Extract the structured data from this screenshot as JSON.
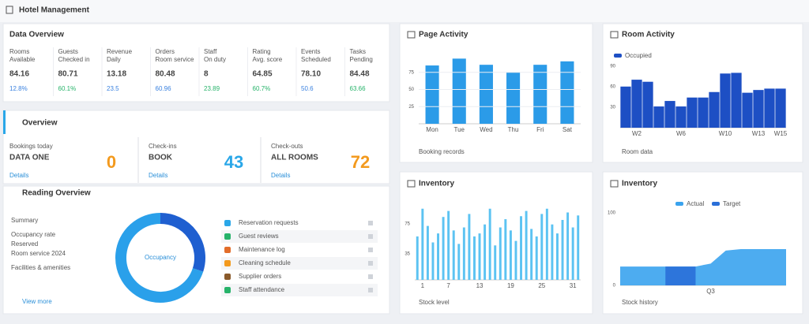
{
  "header": {
    "title": "Hotel Management"
  },
  "overview": {
    "title": "Data Overview",
    "stats": [
      {
        "label": "Rooms",
        "sub": "Available",
        "value": "84.16",
        "delta": "12.8%",
        "color": "#3b82e0"
      },
      {
        "label": "Guests",
        "sub": "Checked in",
        "value": "80.71",
        "delta": "60.1%",
        "color": "#27b36a"
      },
      {
        "label": "Revenue",
        "sub": "Daily",
        "value": "13.18",
        "delta": "23.5",
        "color": "#3b82e0"
      },
      {
        "label": "Orders",
        "sub": "Room service",
        "value": "80.48",
        "delta": "60.96",
        "color": "#3b82e0"
      },
      {
        "label": "Staff",
        "sub": "On duty",
        "value": "8",
        "delta": "23.89",
        "color": "#27b36a"
      },
      {
        "label": "Rating",
        "sub": "Avg. score",
        "value": "64.85",
        "delta": "60.7%",
        "color": "#27b36a"
      },
      {
        "label": "Events",
        "sub": "Scheduled",
        "value": "78.10",
        "delta": "50.6",
        "color": "#3b82e0"
      },
      {
        "label": "Tasks",
        "sub": "Pending",
        "value": "84.48",
        "delta": "63.66",
        "color": "#27b36a"
      }
    ]
  },
  "summary": {
    "title": "Overview",
    "cards": [
      {
        "label": "Bookings today",
        "name": "DATA ONE",
        "note": "Details",
        "value": 0,
        "color": "#f39a1e"
      },
      {
        "label": "Check-ins",
        "name": "BOOK",
        "note": "Details",
        "value": 43,
        "color": "#2aa7e8"
      },
      {
        "label": "Check-outs",
        "name": "ALL ROOMS",
        "note": "Details",
        "value": 72,
        "color": "#f39a1e"
      }
    ]
  },
  "reading": {
    "title": "Reading Overview",
    "list": [
      "Summary",
      "Occupancy rate",
      "Reserved",
      "Room service 2024",
      "Facilities & amenities"
    ],
    "footer": "View more",
    "rows": [
      {
        "text": "Reservation requests",
        "color": "#2aa7e8"
      },
      {
        "text": "Guest reviews",
        "color": "#27b36a"
      },
      {
        "text": "Maintenance log",
        "color": "#e26d2a"
      },
      {
        "text": "Cleaning schedule",
        "color": "#f39a1e"
      },
      {
        "text": "Supplier orders",
        "color": "#8a5a2b"
      },
      {
        "text": "Staff attendance",
        "color": "#27b36a"
      }
    ]
  },
  "chart_data": [
    {
      "type": "pie",
      "center_label": "Occupancy",
      "values": [
        30,
        70
      ],
      "colors": [
        "#1f5fd0",
        "#2aa0ea"
      ]
    },
    {
      "type": "bar",
      "title": "Page Activity",
      "footer": "Booking records",
      "categories": [
        "Mon",
        "Tue",
        "Wed",
        "Thu",
        "Fri",
        "Sat"
      ],
      "values": [
        85,
        95,
        86,
        75,
        86,
        91
      ],
      "color": "#2b9be8",
      "ylim": [
        0,
        100
      ],
      "yticks": [
        25,
        50,
        75
      ],
      "grid": true
    },
    {
      "type": "bar",
      "title": "Room Activity",
      "footer": "Room data",
      "series_name": "Occupied",
      "categories": [
        null,
        "W2",
        null,
        null,
        null,
        "W6",
        null,
        null,
        null,
        "W10",
        null,
        null,
        "W13",
        null,
        "W15"
      ],
      "values": [
        60,
        70,
        67,
        31,
        39,
        31,
        44,
        44,
        52,
        79,
        80,
        51,
        55,
        57,
        57
      ],
      "color": "#1d4fc4",
      "ylim": [
        0,
        100
      ],
      "yticks": [
        30,
        60,
        90
      ],
      "grid": false
    },
    {
      "type": "bar",
      "title": "Inventory",
      "footer": "Stock level",
      "categories": [
        null,
        "1",
        null,
        null,
        null,
        null,
        "7",
        null,
        null,
        null,
        null,
        null,
        "13",
        null,
        null,
        null,
        null,
        null,
        "19",
        null,
        null,
        null,
        null,
        null,
        "25",
        null,
        null,
        null,
        null,
        null,
        "31",
        null
      ],
      "values": [
        58,
        95,
        72,
        50,
        62,
        84,
        92,
        66,
        48,
        70,
        88,
        58,
        62,
        74,
        95,
        46,
        70,
        81,
        66,
        52,
        85,
        92,
        68,
        58,
        88,
        95,
        74,
        62,
        80,
        90,
        70,
        86
      ],
      "color": "#5cc3f2",
      "ylim": [
        0,
        100
      ],
      "yticks": [
        35,
        75
      ],
      "grid": false
    },
    {
      "type": "area",
      "title": "Inventory",
      "footer": "Stock history",
      "categories": [
        null,
        null,
        null,
        null,
        null,
        null,
        "Q3",
        null,
        null,
        null,
        null,
        null
      ],
      "series": [
        {
          "name": "Actual",
          "color": "#3aa3ee",
          "values": [
            26,
            26,
            26,
            26,
            26,
            26,
            30,
            48,
            50,
            50,
            50,
            50
          ]
        },
        {
          "name": "Target",
          "color": "#2a6fd8",
          "values": [
            null,
            null,
            null,
            26,
            26,
            26,
            null,
            null,
            null,
            null,
            null,
            null
          ]
        }
      ],
      "ylim": [
        0,
        100
      ],
      "yticks": [
        0,
        100
      ],
      "grid": false
    }
  ]
}
